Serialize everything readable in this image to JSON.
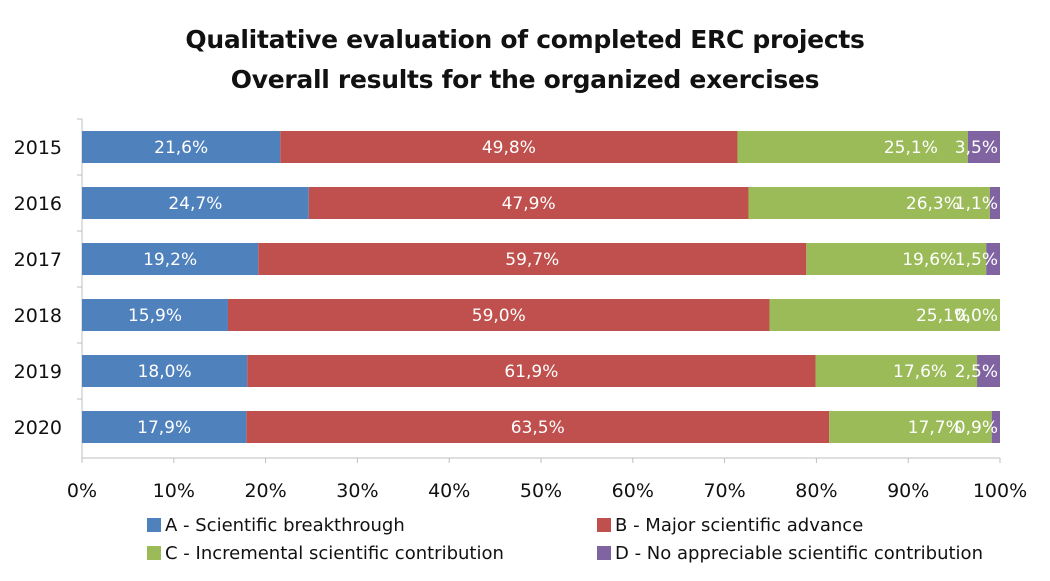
{
  "chart_data": {
    "type": "bar",
    "orientation": "horizontal",
    "stacked": true,
    "title": "Qualitative evaluation of completed ERC projects",
    "subtitle": "Overall results for the organized exercises",
    "categories": [
      "2015",
      "2016",
      "2017",
      "2018",
      "2019",
      "2020"
    ],
    "series": [
      {
        "name": "A - Scientific breakthrough",
        "color": "#4f81bd",
        "values": [
          21.6,
          24.7,
          19.2,
          15.9,
          18.0,
          17.9
        ],
        "labels": [
          "21,6%",
          "24,7%",
          "19,2%",
          "15,9%",
          "18,0%",
          "17,9%"
        ]
      },
      {
        "name": "B - Major scientific advance",
        "color": "#c0504d",
        "values": [
          49.8,
          47.9,
          59.7,
          59.0,
          61.9,
          63.5
        ],
        "labels": [
          "49,8%",
          "47,9%",
          "59,7%",
          "59,0%",
          "61,9%",
          "63,5%"
        ]
      },
      {
        "name": "C - Incremental scientific contribution",
        "color": "#9bbb59",
        "values": [
          25.1,
          26.3,
          19.6,
          25.1,
          17.6,
          17.7
        ],
        "labels": [
          "25,1%",
          "26,3%",
          "19,6%",
          "25,1%",
          "17,6%",
          "17,7%"
        ]
      },
      {
        "name": "D - No appreciable scientific contribution",
        "color": "#8064a2",
        "values": [
          3.5,
          1.1,
          1.5,
          0.0,
          2.5,
          0.9
        ],
        "labels": [
          "3,5%",
          "1,1%",
          "1,5%",
          "0,0%",
          "2,5%",
          "0,9%"
        ]
      }
    ],
    "x_ticks": [
      "0%",
      "10%",
      "20%",
      "30%",
      "40%",
      "50%",
      "60%",
      "70%",
      "80%",
      "90%",
      "100%"
    ],
    "xlim": [
      0,
      100
    ],
    "grid": false,
    "legend_position": "bottom"
  }
}
